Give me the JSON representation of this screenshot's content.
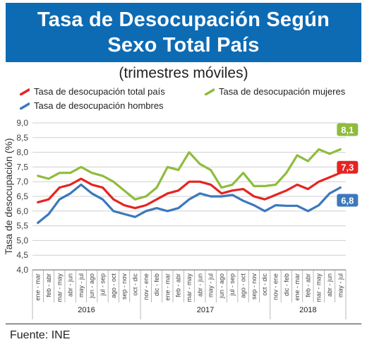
{
  "header": {
    "title_line1": "Tasa de Desocupación Según",
    "title_line2": "Sexo Total País"
  },
  "subtitle": "(trimestres móviles)",
  "footer": {
    "source": "Fuente: INE"
  },
  "colors": {
    "banner": "#0d6bb4",
    "total": "#e52421",
    "mujeres": "#8fbc3d",
    "hombres": "#3b78bd"
  },
  "chart_data": {
    "type": "line",
    "ylabel": "Tasa de desocupación (%)",
    "ylim": [
      4.0,
      9.0
    ],
    "yticks": [
      "9,0",
      "8,5",
      "8,0",
      "7,5",
      "7,0",
      "6,5",
      "6,0",
      "5,5",
      "5,0",
      "4,5",
      "4,0"
    ],
    "grid": "horizontal",
    "legend_position": "top",
    "categories": [
      "ene - mar",
      "feb - abr",
      "mar - may",
      "abr - jun",
      "may - jul",
      "jun - ago",
      "jul - sep",
      "ago - oct",
      "sep - nov",
      "oct - dic",
      "nov - ene",
      "dic - feb",
      "ene - mar",
      "feb - abr",
      "mar - may",
      "abr - jun",
      "may - jul",
      "jun - ago",
      "jul - sep",
      "ago - oct",
      "sep - nov",
      "oct - dic",
      "nov - ene",
      "dic - feb",
      "ene - mar",
      "feb - abr",
      "mar - may",
      "abr - jun",
      "may - jul"
    ],
    "years": [
      {
        "label": "2016",
        "from": 0,
        "to": 9
      },
      {
        "label": "2017",
        "from": 10,
        "to": 21
      },
      {
        "label": "2018",
        "from": 22,
        "to": 28
      }
    ],
    "series": [
      {
        "key": "mujeres",
        "name": "Tasa de desocupación mujeres",
        "color": "#8fbc3d",
        "values": [
          7.2,
          7.1,
          7.3,
          7.3,
          7.5,
          7.3,
          7.2,
          7.0,
          6.7,
          6.4,
          6.5,
          6.8,
          7.5,
          7.4,
          8.0,
          7.6,
          7.4,
          6.8,
          6.9,
          7.3,
          6.85,
          6.85,
          6.9,
          7.3,
          7.9,
          7.7,
          8.1,
          7.95,
          8.1
        ]
      },
      {
        "key": "total",
        "name": "Tasa de desocupación total país",
        "color": "#e52421",
        "values": [
          6.3,
          6.4,
          6.8,
          6.9,
          7.1,
          6.9,
          6.8,
          6.4,
          6.2,
          6.1,
          6.2,
          6.4,
          6.6,
          6.7,
          7.0,
          7.0,
          6.9,
          6.6,
          6.7,
          6.75,
          6.5,
          6.4,
          6.55,
          6.7,
          6.9,
          6.75,
          7.0,
          7.15,
          7.3
        ]
      },
      {
        "key": "hombres",
        "name": "Tasa de desocupación hombres",
        "color": "#3b78bd",
        "values": [
          5.6,
          5.9,
          6.4,
          6.6,
          6.9,
          6.6,
          6.4,
          6.0,
          5.9,
          5.8,
          6.0,
          6.1,
          6.0,
          6.1,
          6.4,
          6.6,
          6.5,
          6.5,
          6.55,
          6.35,
          6.2,
          6.0,
          6.2,
          6.18,
          6.18,
          6.0,
          6.2,
          6.6,
          6.8
        ]
      }
    ],
    "data_labels": [
      {
        "series": "mujeres",
        "text": "8,1"
      },
      {
        "series": "total",
        "text": "7,3"
      },
      {
        "series": "hombres",
        "text": "6,8"
      }
    ]
  }
}
